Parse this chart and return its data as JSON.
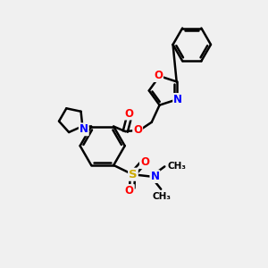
{
  "background_color": "#f0f0f0",
  "bond_color": "#000000",
  "atom_colors": {
    "N": "#0000ff",
    "O": "#ff0000",
    "S": "#ccaa00",
    "C": "#000000"
  },
  "figsize": [
    3.0,
    3.0
  ],
  "dpi": 100,
  "xlim": [
    0,
    10
  ],
  "ylim": [
    0,
    10
  ]
}
